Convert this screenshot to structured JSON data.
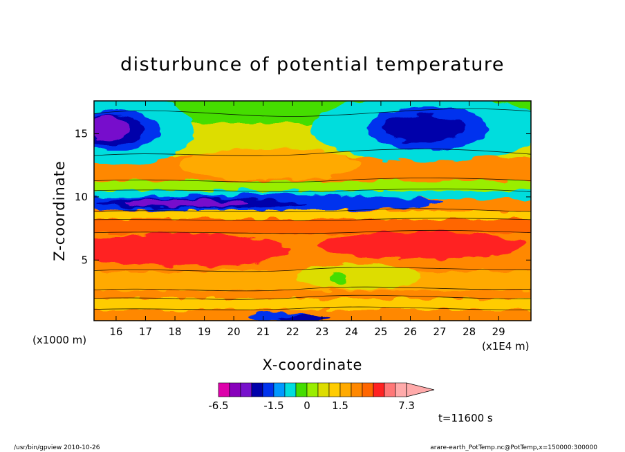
{
  "chart_data": {
    "type": "heatmap",
    "title": "disturbunce of potential temperature",
    "xlabel": "X-coordinate",
    "ylabel": "Z-coordinate",
    "x_unit_left": "(x1000 m)",
    "x_unit_right": "(x1E4 m)",
    "xlim": [
      15.25,
      30.1
    ],
    "ylim": [
      0.2,
      17.6
    ],
    "x_ticks": [
      16,
      17,
      18,
      19,
      20,
      21,
      22,
      23,
      24,
      25,
      26,
      27,
      28,
      29
    ],
    "x_tick_labels": [
      "16",
      "17",
      "18",
      "19",
      "20",
      "21",
      "22",
      "23",
      "24",
      "25",
      "26",
      "27",
      "28",
      "29"
    ],
    "y_ticks": [
      5,
      10,
      15
    ],
    "y_tick_labels": [
      "5",
      "10",
      "15"
    ],
    "colorbar": {
      "levels": [
        -6.5,
        -5.5,
        -4.5,
        -3.5,
        -2.5,
        -1.5,
        -1.0,
        -0.5,
        0.0,
        0.5,
        1.0,
        1.5,
        2.5,
        3.5,
        4.5,
        5.5,
        6.5,
        7.3
      ],
      "labels": [
        "-6.5",
        "-1.5",
        "0",
        "1.5",
        "7.3"
      ],
      "label_values": [
        -6.5,
        -1.5,
        0,
        1.5,
        7.3
      ],
      "colors": [
        "#dd00aa",
        "#8800bb",
        "#7711cc",
        "#0000aa",
        "#0033ee",
        "#0099ff",
        "#00dddd",
        "#44dd00",
        "#99ee00",
        "#dddd00",
        "#ffcc00",
        "#ffaa00",
        "#ff8800",
        "#ff6600",
        "#ff2222",
        "#ff7777",
        "#ffaaaa"
      ]
    },
    "time_label": "t=11600 s"
  },
  "footer": {
    "left": "/usr/bin/gpview   2010-10-26",
    "right": "arare-earth_PotTemp.nc@PotTemp,x=150000:300000"
  }
}
